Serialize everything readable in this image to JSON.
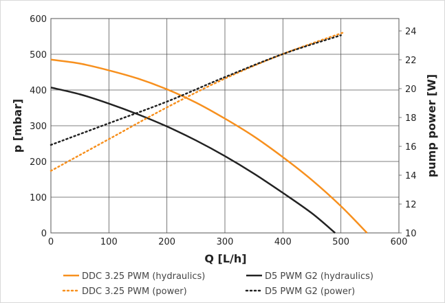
{
  "chart_data": {
    "type": "line",
    "title": "",
    "xlabel": "Q [L/h]",
    "ylabel": "p [mbar]",
    "y2label": "pump power [W]",
    "xlim": [
      0,
      600
    ],
    "ylim": [
      0,
      600
    ],
    "y2lim": [
      10,
      24.9
    ],
    "xticks": [
      0,
      100,
      200,
      300,
      400,
      500,
      600
    ],
    "yticks": [
      0,
      100,
      200,
      300,
      400,
      500,
      600
    ],
    "y2ticks": [
      10,
      12,
      14,
      16,
      18,
      20,
      22,
      24
    ],
    "grid": true,
    "legend_position": "bottom",
    "series": [
      {
        "name": "DDC 3.25 PWM (hydraulics)",
        "axis": "left",
        "style": "solid",
        "color": "#f7901e",
        "x": [
          0,
          50,
          100,
          150,
          200,
          250,
          300,
          350,
          400,
          450,
          500,
          545
        ],
        "y": [
          485,
          474,
          455,
          432,
          402,
          365,
          320,
          270,
          212,
          148,
          75,
          0
        ]
      },
      {
        "name": "D5 PWM G2 (hydraulics)",
        "axis": "left",
        "style": "solid",
        "color": "#222222",
        "x": [
          0,
          50,
          100,
          150,
          200,
          250,
          300,
          350,
          400,
          450,
          490
        ],
        "y": [
          407,
          388,
          362,
          332,
          298,
          259,
          215,
          166,
          112,
          55,
          0
        ]
      },
      {
        "name": "DDC 3.25 PWM (power)",
        "axis": "right",
        "style": "dotted",
        "color": "#f7901e",
        "x": [
          0,
          100,
          200,
          300,
          400,
          505
        ],
        "y": [
          14.3,
          16.5,
          18.7,
          20.7,
          22.4,
          23.9
        ]
      },
      {
        "name": "D5 PWM G2 (power)",
        "axis": "right",
        "style": "dotted",
        "color": "#222222",
        "x": [
          0,
          100,
          200,
          300,
          400,
          500
        ],
        "y": [
          16.1,
          17.6,
          19.1,
          20.8,
          22.4,
          23.7
        ]
      }
    ]
  }
}
